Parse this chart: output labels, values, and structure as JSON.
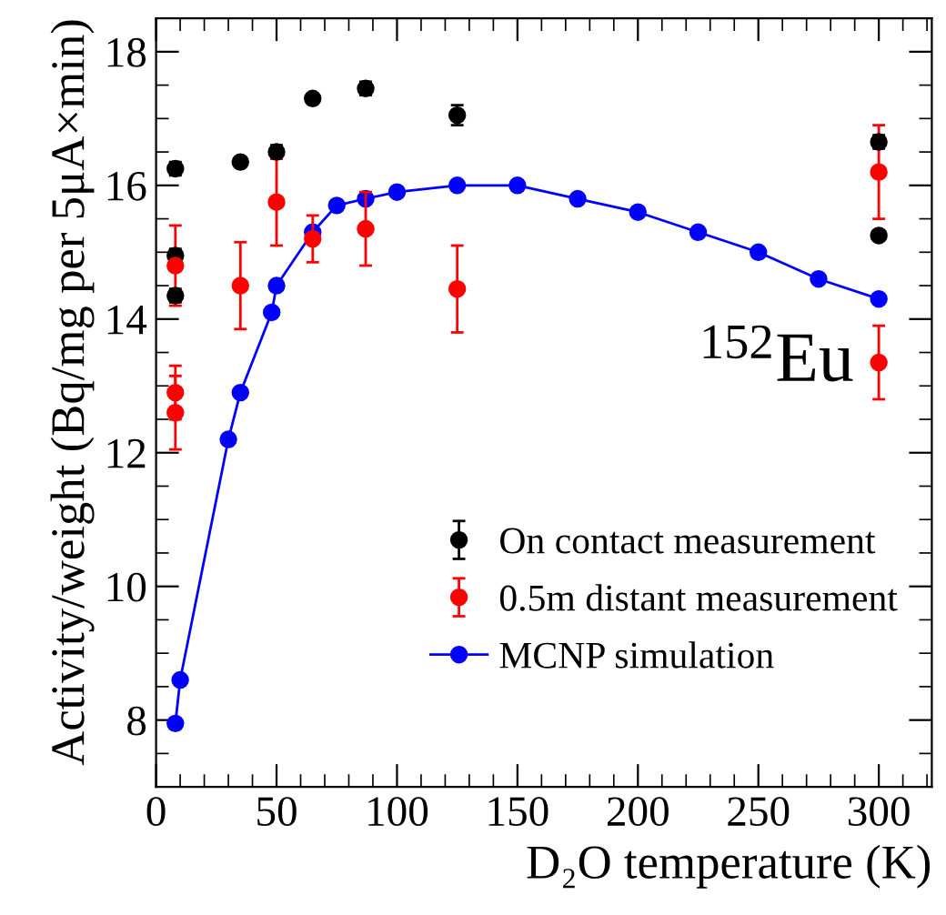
{
  "chart_data": {
    "type": "scatter",
    "xlabel": "D₂O temperature (K)",
    "ylabel": "Activity/weight (Bq/mg per 5μA×min)",
    "annotations": [
      "$^{152}$Eu"
    ],
    "xlim": [
      0,
      322
    ],
    "xticks": [
      0,
      50,
      100,
      150,
      200,
      250,
      300
    ],
    "ylim": [
      7,
      18.5
    ],
    "yticks": [
      8,
      10,
      12,
      14,
      16,
      18
    ],
    "grid": false,
    "legend": "lower right",
    "marker": "circle",
    "series": [
      {
        "name": "On contact measurement",
        "color": "#000000",
        "x": [
          8,
          8,
          8,
          35,
          50,
          65,
          87,
          125,
          300,
          300
        ],
        "values": [
          16.25,
          14.95,
          14.35,
          16.35,
          16.5,
          17.3,
          17.45,
          17.05,
          16.65,
          15.25
        ],
        "errors": [
          0.1,
          0.1,
          0.1,
          0.05,
          0.1,
          0.05,
          0.1,
          0.15,
          0.1,
          0.05
        ]
      },
      {
        "name": "0.5m distant measurement",
        "color": "#ff0000",
        "x": [
          8,
          8,
          8,
          35,
          50,
          65,
          87,
          125,
          300,
          300
        ],
        "values": [
          14.8,
          12.9,
          12.6,
          14.5,
          15.75,
          15.2,
          15.35,
          14.45,
          16.2,
          13.35
        ],
        "errors": [
          0.6,
          0.4,
          0.55,
          0.65,
          0.65,
          0.35,
          0.55,
          0.65,
          0.7,
          0.55
        ]
      },
      {
        "name": "MCNP simulation",
        "color": "#0000ff",
        "type": "line",
        "x": [
          8,
          10,
          30,
          35,
          48,
          50,
          65,
          75,
          87,
          100,
          125,
          150,
          175,
          200,
          225,
          250,
          275,
          300
        ],
        "values": [
          7.95,
          8.6,
          12.2,
          12.9,
          14.1,
          14.5,
          15.3,
          15.7,
          15.8,
          15.9,
          16.0,
          16.0,
          15.8,
          15.6,
          15.3,
          15.0,
          14.6,
          14.3
        ]
      }
    ]
  }
}
